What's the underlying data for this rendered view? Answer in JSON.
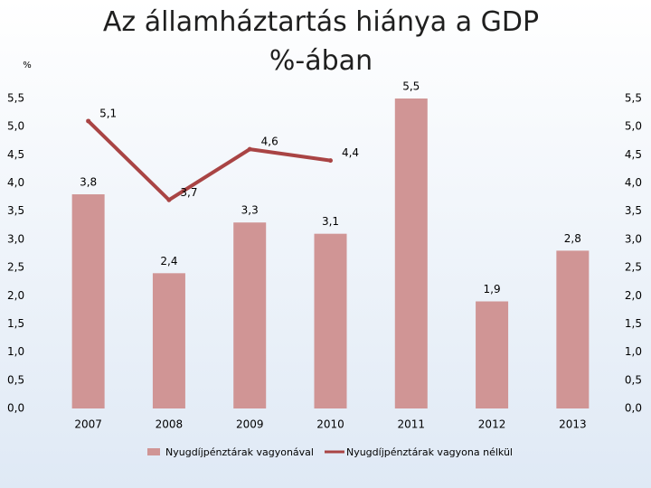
{
  "chart_data": {
    "type": "bar+line",
    "title": "Az államháztartás hiánya a GDP %-ában",
    "y_axis_label": "%",
    "categories": [
      "2007",
      "2008",
      "2009",
      "2010",
      "2011",
      "2012",
      "2013"
    ],
    "series": [
      {
        "name": "Nyugdíjpénztárak vagyonával",
        "type": "bar",
        "color": "#d09595",
        "values": [
          3.8,
          2.4,
          3.3,
          3.1,
          5.5,
          1.9,
          2.8
        ],
        "value_labels": [
          "3,8",
          "2,4",
          "3,3",
          "3,1",
          "5,5",
          "1,9",
          "2,8"
        ]
      },
      {
        "name": "Nyugdíjpénztárak vagyona nélkül",
        "type": "line",
        "color": "#a94444",
        "values": [
          5.1,
          3.7,
          4.6,
          4.4,
          null,
          null,
          null
        ],
        "value_labels": [
          "5,1",
          "3,7",
          "4,6",
          "4,4",
          null,
          null,
          null
        ]
      }
    ],
    "ylim": [
      0,
      5.5
    ],
    "yticks": [
      {
        "value": 0,
        "label": "0,0"
      },
      {
        "value": 0.5,
        "label": "0,5"
      },
      {
        "value": 1,
        "label": "1,0"
      },
      {
        "value": 1.5,
        "label": "1,5"
      },
      {
        "value": 2,
        "label": "2,0"
      },
      {
        "value": 2.5,
        "label": "2,5"
      },
      {
        "value": 3,
        "label": "3,0"
      },
      {
        "value": 3.5,
        "label": "3,5"
      },
      {
        "value": 4,
        "label": "4,0"
      },
      {
        "value": 4.5,
        "label": "4,5"
      },
      {
        "value": 5,
        "label": "5,0"
      },
      {
        "value": 5.5,
        "label": "5,5"
      }
    ],
    "grid": false,
    "legend": "bottom"
  }
}
